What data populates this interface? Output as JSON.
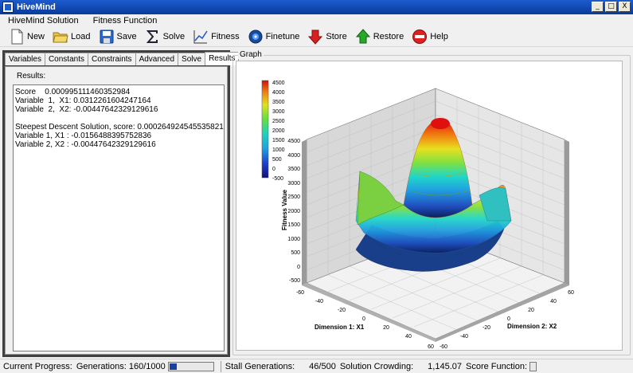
{
  "window": {
    "title": "HiveMind",
    "minimize": "_",
    "maximize": "□",
    "close": "X"
  },
  "menu": [
    "HiveMind Solution",
    "Fitness Function"
  ],
  "toolbar": [
    {
      "label": "New",
      "icon": "new-document-icon"
    },
    {
      "label": "Load",
      "icon": "folder-open-icon"
    },
    {
      "label": "Save",
      "icon": "floppy-disk-icon"
    },
    {
      "label": "Solve",
      "icon": "sigma-icon"
    },
    {
      "label": "Fitness",
      "icon": "line-chart-icon"
    },
    {
      "label": "Finetune",
      "icon": "globe-icon"
    },
    {
      "label": "Store",
      "icon": "arrow-down-icon"
    },
    {
      "label": "Restore",
      "icon": "arrow-up-icon"
    },
    {
      "label": "Help",
      "icon": "help-badge-icon"
    }
  ],
  "tabs": [
    "Variables",
    "Constants",
    "Constraints",
    "Advanced",
    "Solve",
    "Results"
  ],
  "active_tab": "Results",
  "results": {
    "label": "Results:",
    "lines": [
      "Score    0.000995111460352984",
      "Variable  1,  X1: 0.0312261604247164",
      "Variable  2,  X2: -0.00447642329129616",
      "",
      "Steepest Descent Solution, score: 0.000264924545535821",
      "Variable 1, X1 : -0.0156488395752836",
      "Variable 2, X2 : -0.00447642329129616"
    ]
  },
  "graph": {
    "group_label": "Graph",
    "colorbar_ticks": [
      "4500",
      "4000",
      "3500",
      "3000",
      "2500",
      "2000",
      "1500",
      "1000",
      "500",
      "0",
      "-500"
    ],
    "z_ticks": [
      "4500",
      "4000",
      "3500",
      "3000",
      "2500",
      "2000",
      "1500",
      "1000",
      "500",
      "0",
      "-500"
    ],
    "z_label": "Fitness Value",
    "x1_ticks": [
      "-60",
      "-40",
      "-20",
      "0",
      "20",
      "40",
      "60"
    ],
    "x2_ticks": [
      "60",
      "40",
      "20",
      "0",
      "-20",
      "-40",
      "-60"
    ],
    "x1_label": "Dimension 1: X1",
    "x2_label": "Dimension 2: X2"
  },
  "status": {
    "progress_label": "Current Progress:",
    "generations_label": "Generations: 160/1000",
    "generations_fraction": 0.16,
    "stall_label": "Stall Generations:",
    "stall_value": "46/500",
    "crowding_label": "Solution Crowding:",
    "crowding_value": "1,145.07",
    "score_label": "Score Function:"
  }
}
